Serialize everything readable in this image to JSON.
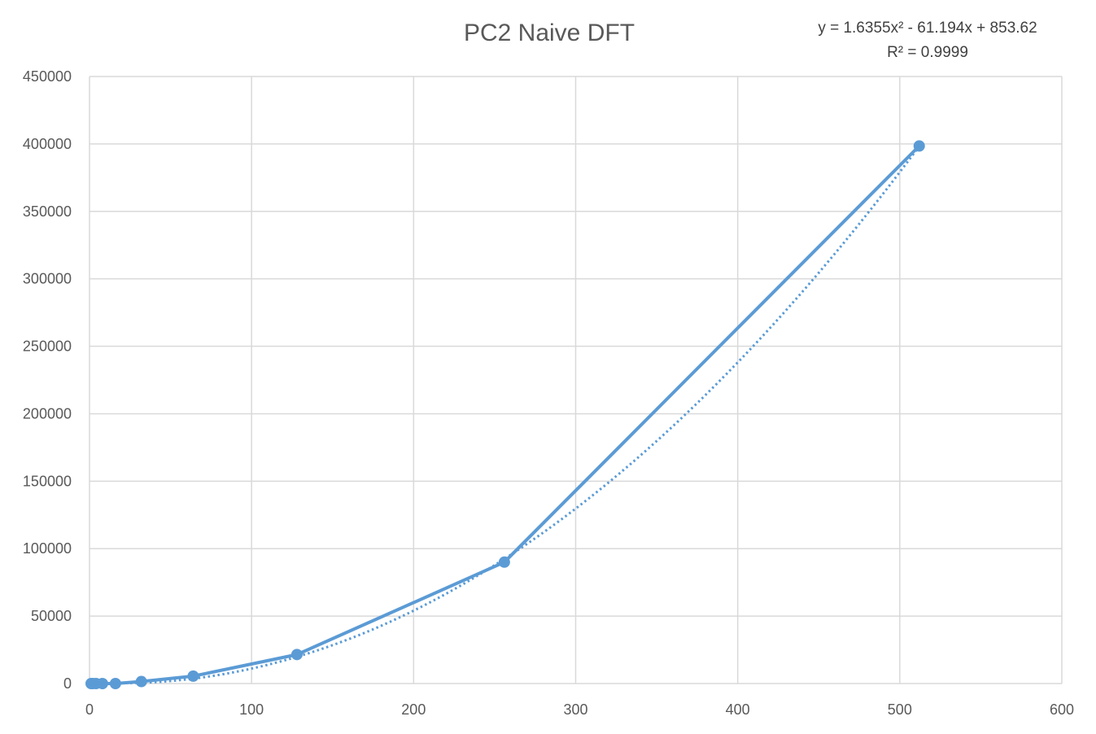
{
  "chart_data": {
    "type": "scatter",
    "title": "PC2 Naive DFT",
    "xlabel": "",
    "ylabel": "",
    "xlim": [
      0,
      600
    ],
    "ylim": [
      0,
      450000
    ],
    "x_ticks": [
      0,
      100,
      200,
      300,
      400,
      500,
      600
    ],
    "y_ticks": [
      0,
      50000,
      100000,
      150000,
      200000,
      250000,
      300000,
      350000,
      400000,
      450000
    ],
    "grid": true,
    "legend": "none",
    "series": [
      {
        "style": "solid line with markers",
        "color": "#5b9bd5",
        "x": [
          1,
          2,
          4,
          8,
          16,
          32,
          64,
          128,
          256,
          512
        ],
        "y": [
          0,
          0,
          0,
          0,
          0,
          1500,
          5500,
          21500,
          90000,
          398500
        ]
      }
    ],
    "trendline": {
      "type": "polynomial",
      "order": 2,
      "style": "dotted",
      "color": "#5b9bd5",
      "coefficients": [
        1.6355,
        -61.194,
        853.62
      ],
      "equation_label": "y = 1.6355x² - 61.194x + 853.62",
      "r2_label": "R² = 0.9999"
    }
  }
}
